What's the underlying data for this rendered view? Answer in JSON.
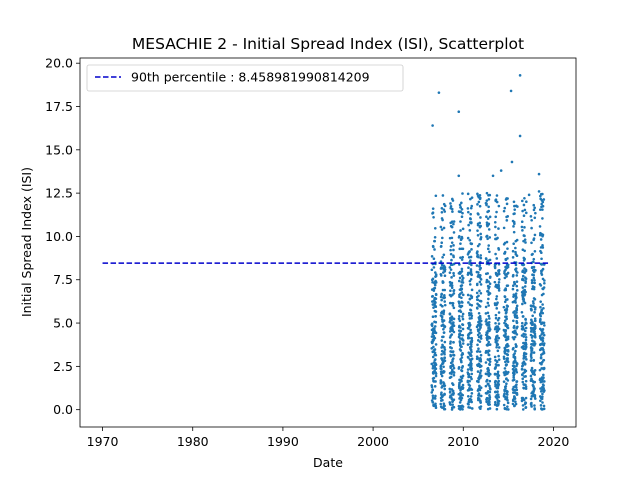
{
  "chart_data": {
    "type": "scatter",
    "title": "MESACHIE 2 - Initial Spread Index (ISI), Scatterplot",
    "xlabel": "Date",
    "ylabel": "Initial Spread Index (ISI)",
    "xlim": [
      1967.5,
      2022.5
    ],
    "ylim": [
      -1.0,
      20.3
    ],
    "x_ticks": [
      1970,
      1980,
      1990,
      2000,
      2010,
      2020
    ],
    "y_ticks": [
      0.0,
      2.5,
      5.0,
      7.5,
      10.0,
      12.5,
      15.0,
      17.5,
      20.0
    ],
    "y_tick_labels": [
      "0.0",
      "2.5",
      "5.0",
      "7.5",
      "10.0",
      "12.5",
      "15.0",
      "17.5",
      "20.0"
    ],
    "grid": false,
    "legend_position": "top-left",
    "series_color": "#1f77b4",
    "threshold_line": {
      "label": "90th percentile : 8.458981990814209",
      "value": 8.458981990814209,
      "x_range": [
        1970,
        2019.5
      ],
      "color": "#0000cc",
      "style": "dashed"
    },
    "fire_seasons": [
      2006.5,
      2007.5,
      2008.5,
      2009.5,
      2010.5,
      2011.5,
      2012.5,
      2013.5,
      2014.5,
      2015.5,
      2016.5,
      2017.5,
      2018.5
    ],
    "season_length_years": 0.5,
    "points_per_season": 150,
    "outliers": [
      {
        "x": 2006.6,
        "y": 16.4
      },
      {
        "x": 2007.3,
        "y": 18.3
      },
      {
        "x": 2009.5,
        "y": 17.2
      },
      {
        "x": 2009.5,
        "y": 13.5
      },
      {
        "x": 2012.8,
        "y": 10.7
      },
      {
        "x": 2013.3,
        "y": 13.5
      },
      {
        "x": 2014.2,
        "y": 13.8
      },
      {
        "x": 2015.3,
        "y": 18.4
      },
      {
        "x": 2015.4,
        "y": 14.3
      },
      {
        "x": 2016.3,
        "y": 19.3
      },
      {
        "x": 2016.3,
        "y": 15.8
      },
      {
        "x": 2017.3,
        "y": 12.4
      },
      {
        "x": 2018.4,
        "y": 13.6
      },
      {
        "x": 2018.4,
        "y": 12.6
      }
    ]
  }
}
